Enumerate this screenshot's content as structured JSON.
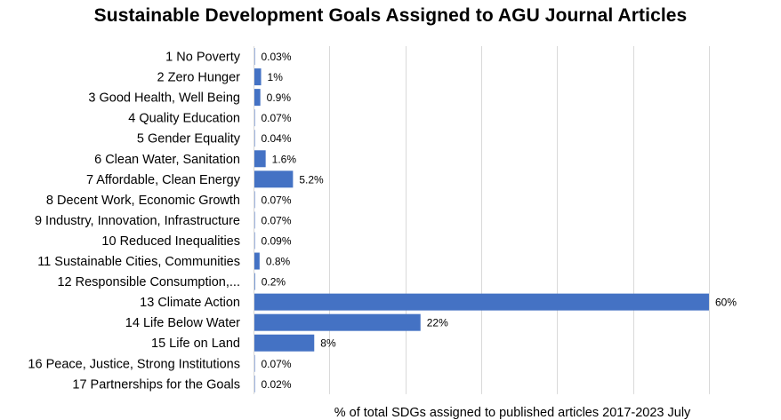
{
  "chart_data": {
    "type": "bar",
    "orientation": "horizontal",
    "title": "Sustainable Development Goals Assigned to AGU Journal Articles",
    "xlabel": "% of total SDGs assigned to published articles 2017-2023 July",
    "ylabel": "",
    "xlim": [
      0,
      60
    ],
    "grid": true,
    "legend": "none",
    "bar_color": "#4472C4",
    "grid_color": "#D9D9D9",
    "categories": [
      "1 No Poverty",
      "2 Zero Hunger",
      "3 Good Health, Well Being",
      "4 Quality Education",
      "5 Gender Equality",
      "6 Clean Water, Sanitation",
      "7 Affordable, Clean Energy",
      "8 Decent Work, Economic Growth",
      "9 Industry, Innovation, Infrastructure",
      "10 Reduced Inequalities",
      "11 Sustainable Cities, Communities",
      "12 Responsible Consumption,...",
      "13 Climate Action",
      "14 Life Below Water",
      "15 Life on Land",
      "16 Peace, Justice, Strong Institutions",
      "17 Partnerships for the Goals"
    ],
    "values": [
      0.03,
      1,
      0.9,
      0.07,
      0.04,
      1.6,
      5.2,
      0.07,
      0.07,
      0.09,
      0.8,
      0.2,
      60,
      22,
      8,
      0.07,
      0.02
    ],
    "data_labels": [
      "0.03%",
      "1%",
      "0.9%",
      "0.07%",
      "0.04%",
      "1.6%",
      "5.2%",
      "0.07%",
      "0.07%",
      "0.09%",
      "0.8%",
      "0.2%",
      "60%",
      "22%",
      "8%",
      "0.07%",
      "0.02%"
    ]
  }
}
